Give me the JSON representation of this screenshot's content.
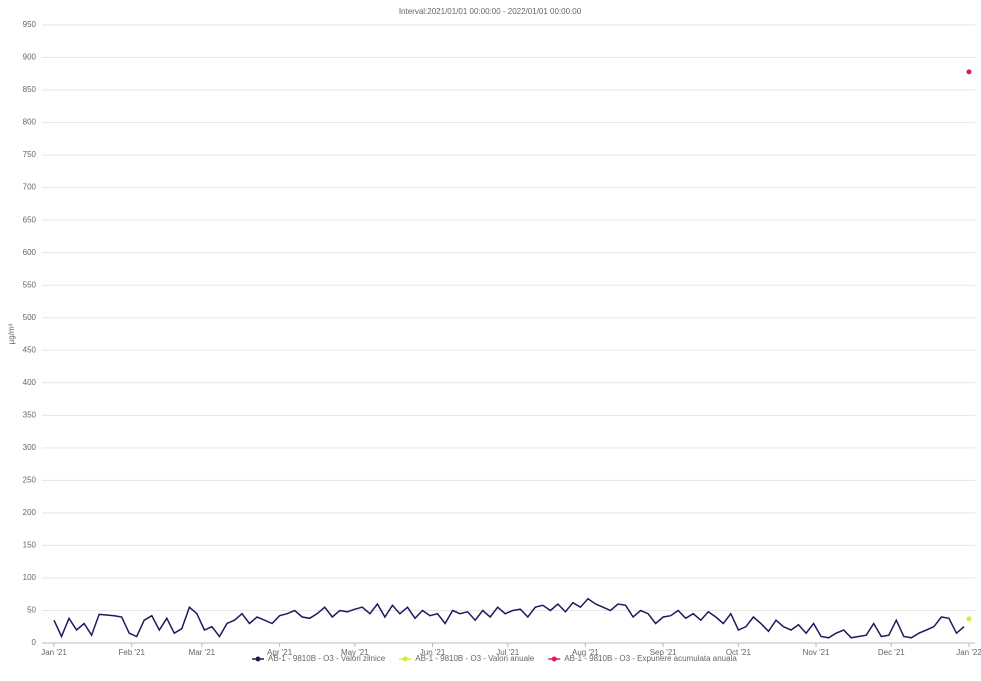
{
  "chart_data": {
    "type": "line",
    "title": "Interval:2021/01/01 00:00:00 - 2022/01/01 00:00:00",
    "ylabel": "µg/m³",
    "xlim": [
      0,
      365
    ],
    "ylim": [
      0,
      950
    ],
    "yticks": [
      0,
      50,
      100,
      150,
      200,
      250,
      300,
      350,
      400,
      450,
      500,
      550,
      600,
      650,
      700,
      750,
      800,
      850,
      900,
      950
    ],
    "xticks": [
      {
        "value": 0,
        "label": "Jan '21"
      },
      {
        "value": 31,
        "label": "Feb '21"
      },
      {
        "value": 59,
        "label": "Mar '21"
      },
      {
        "value": 90,
        "label": "Apr '21"
      },
      {
        "value": 120,
        "label": "May '21"
      },
      {
        "value": 151,
        "label": "Jun '21"
      },
      {
        "value": 181,
        "label": "Jul '21"
      },
      {
        "value": 212,
        "label": "Aug '21"
      },
      {
        "value": 243,
        "label": "Sep '21"
      },
      {
        "value": 273,
        "label": "Oct '21"
      },
      {
        "value": 304,
        "label": "Nov '21"
      },
      {
        "value": 334,
        "label": "Dec '21"
      },
      {
        "value": 365,
        "label": "Jan '22"
      }
    ],
    "grid": true,
    "series": [
      {
        "name": "AB-1 - 9810B - O3 - Valori zilnice",
        "color": "#1b1b5e",
        "mode": "line",
        "x": [
          0,
          3,
          6,
          9,
          12,
          15,
          18,
          21,
          24,
          27,
          30,
          33,
          36,
          39,
          42,
          45,
          48,
          51,
          54,
          57,
          60,
          63,
          66,
          69,
          72,
          75,
          78,
          81,
          84,
          87,
          90,
          93,
          96,
          99,
          102,
          105,
          108,
          111,
          114,
          117,
          120,
          123,
          126,
          129,
          132,
          135,
          138,
          141,
          144,
          147,
          150,
          153,
          156,
          159,
          162,
          165,
          168,
          171,
          174,
          177,
          180,
          183,
          186,
          189,
          192,
          195,
          198,
          201,
          204,
          207,
          210,
          213,
          216,
          219,
          222,
          225,
          228,
          231,
          234,
          237,
          240,
          243,
          246,
          249,
          252,
          255,
          258,
          261,
          264,
          267,
          270,
          273,
          276,
          279,
          282,
          285,
          288,
          291,
          294,
          297,
          300,
          303,
          306,
          309,
          312,
          315,
          318,
          321,
          324,
          327,
          330,
          333,
          336,
          339,
          342,
          345,
          348,
          351,
          354,
          357,
          360,
          363
        ],
        "values": [
          35,
          10,
          38,
          20,
          30,
          12,
          44,
          43,
          42,
          40,
          15,
          10,
          35,
          42,
          20,
          38,
          15,
          22,
          55,
          45,
          20,
          25,
          10,
          30,
          35,
          45,
          30,
          40,
          35,
          30,
          42,
          45,
          50,
          40,
          38,
          45,
          55,
          40,
          50,
          48,
          52,
          55,
          45,
          60,
          40,
          58,
          45,
          55,
          38,
          50,
          42,
          45,
          30,
          50,
          45,
          48,
          35,
          50,
          40,
          55,
          45,
          50,
          52,
          40,
          55,
          58,
          50,
          60,
          48,
          62,
          55,
          68,
          60,
          55,
          50,
          60,
          58,
          40,
          50,
          45,
          30,
          40,
          42,
          50,
          38,
          45,
          35,
          48,
          40,
          30,
          45,
          20,
          25,
          40,
          30,
          18,
          35,
          25,
          20,
          28,
          15,
          30,
          10,
          8,
          15,
          20,
          8,
          10,
          12,
          30,
          10,
          12,
          35,
          10,
          8,
          15,
          20,
          25,
          40,
          38,
          15,
          25
        ]
      },
      {
        "name": "AB-1 - 9810B - O3 - Valori anuale",
        "color": "#d6ea3c",
        "mode": "point",
        "x": [
          365
        ],
        "values": [
          37
        ]
      },
      {
        "name": "AB-1 - 9810B - O3 - Expunere acumulata anuala",
        "color": "#e3175a",
        "mode": "point",
        "x": [
          365
        ],
        "values": [
          878
        ]
      }
    ]
  }
}
